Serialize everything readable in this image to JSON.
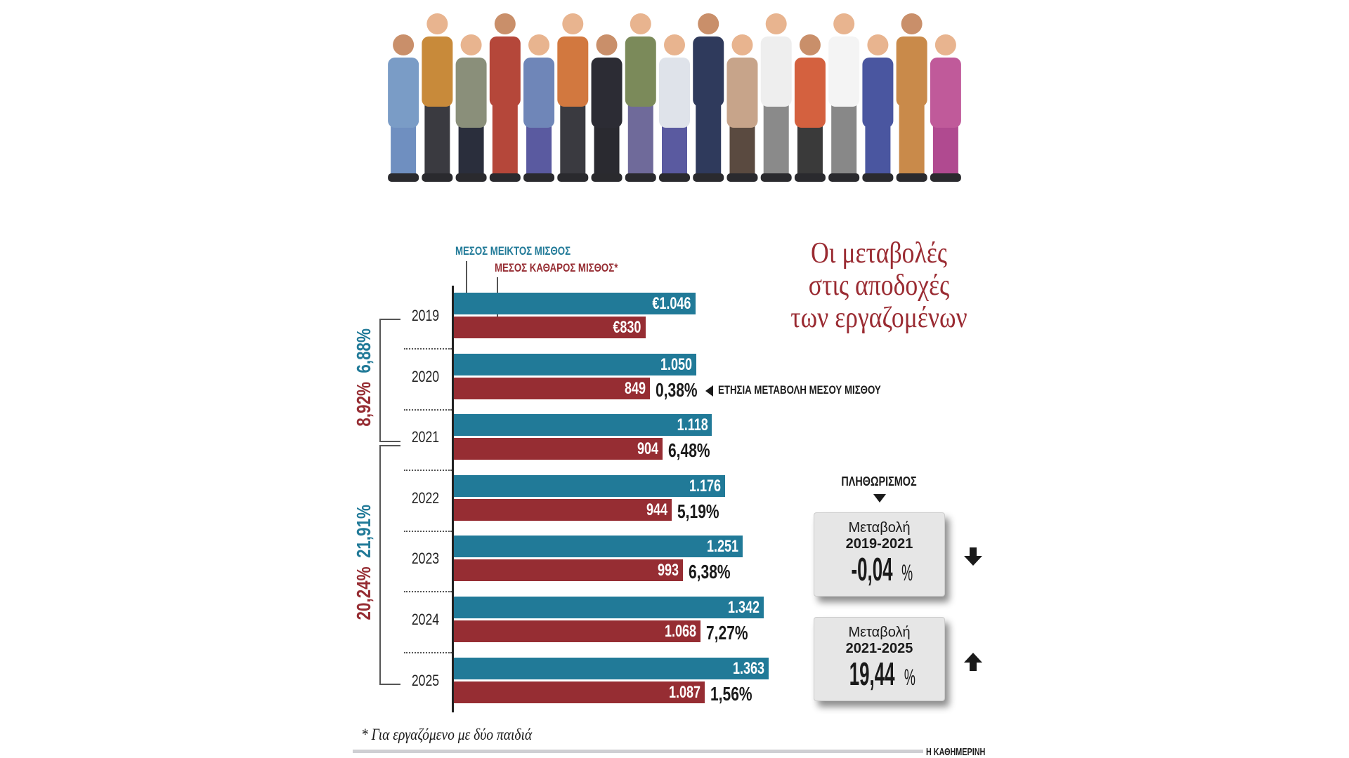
{
  "title": [
    "Οι μεταβολές",
    "στις αποδοχές",
    "των εργαζομένων"
  ],
  "colors": {
    "gross": "#217a98",
    "net": "#962d33",
    "title": "#9a2b32"
  },
  "chart_data": {
    "type": "bar",
    "orientation": "horizontal",
    "categories": [
      "2019",
      "2020",
      "2021",
      "2022",
      "2023",
      "2024",
      "2025"
    ],
    "series": [
      {
        "name": "ΜΕΣΟΣ ΜΕΙΚΤΟΣ ΜΙΣΘΟΣ",
        "values": [
          1046,
          1050,
          1118,
          1176,
          1251,
          1342,
          1363
        ],
        "labels": [
          "€1.046",
          "1.050",
          "1.118",
          "1.176",
          "1.251",
          "1.342",
          "1.363"
        ]
      },
      {
        "name": "ΜΕΣΟΣ ΚΑΘΑΡΟΣ ΜΙΣΘΟΣ*",
        "values": [
          830,
          849,
          904,
          944,
          993,
          1068,
          1087
        ],
        "labels": [
          "€830",
          "849",
          "904",
          "944",
          "993",
          "1.068",
          "1.087"
        ]
      }
    ],
    "annual_change": [
      "",
      "0,38%",
      "6,48%",
      "5,19%",
      "6,38%",
      "7,27%",
      "1,56%"
    ],
    "annual_change_label": "ΕΤΗΣΙΑ ΜΕΤΑΒΟΛΗ ΜΕΣΟΥ ΜΙΣΘΟΥ",
    "period_changes": [
      {
        "gross": "6,88%",
        "net": "8,92%"
      },
      {
        "gross": "21,91%",
        "net": "20,24%"
      }
    ],
    "xlim": [
      0,
      1400
    ]
  },
  "inflation": {
    "heading": "ΠΛΗΘΩΡΙΣΜΟΣ",
    "boxes": [
      {
        "label": "Μεταβολή",
        "period": "2019-2021",
        "value": "-0,04",
        "unit": "%",
        "direction": "down",
        "icon": "arrow-down-icon"
      },
      {
        "label": "Μεταβολή",
        "period": "2021-2025",
        "value": "19,44",
        "unit": "%",
        "direction": "up",
        "icon": "arrow-up-icon"
      }
    ]
  },
  "footnote": "* Για εργαζόμενο με δύο παιδιά",
  "source": "Η ΚΑΘΗΜΕΡΙΝΗ"
}
